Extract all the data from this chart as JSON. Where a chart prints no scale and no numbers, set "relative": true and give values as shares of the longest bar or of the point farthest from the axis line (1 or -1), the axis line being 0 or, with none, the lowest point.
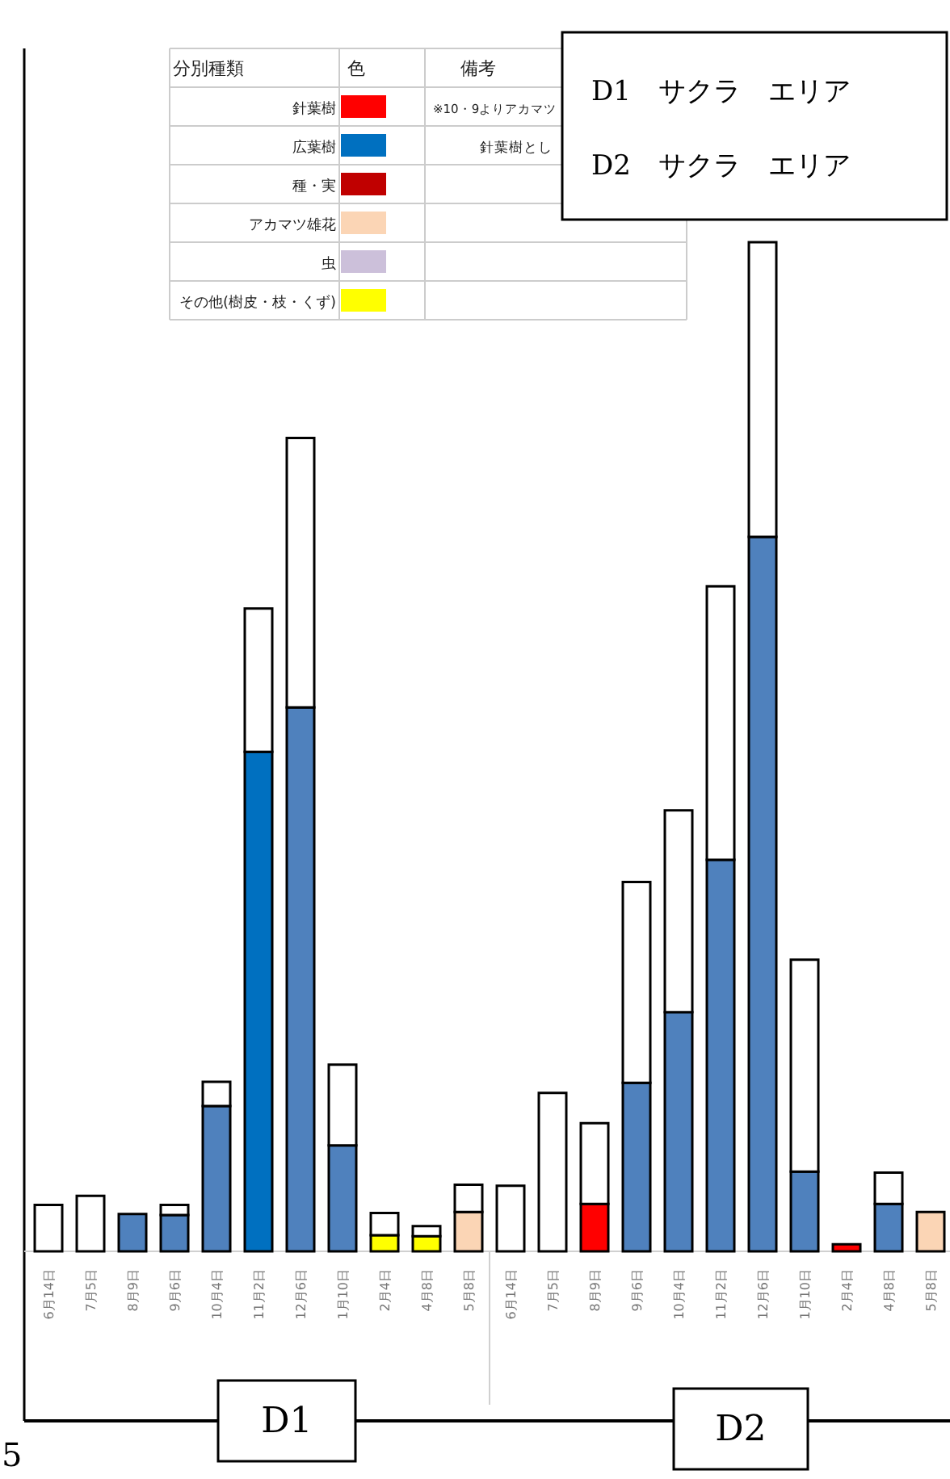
{
  "chart_data": {
    "type": "bar",
    "stacked": true,
    "relative": true,
    "legend": "top left",
    "title": "D1　サクラ　エリア",
    "subtitle": "D2　サクラ　エリア",
    "legend_title": "分別種類",
    "annotations": [
      "色",
      "備考",
      "※10・9よりアカマツ",
      "針葉樹とし",
      "D1",
      "D2",
      "5"
    ],
    "categories": [
      "6月14日",
      "7月5日",
      "8月9日",
      "9月6日",
      "10月4日",
      "11月2日",
      "12月6日",
      "1月10日",
      "2月4日",
      "4月8日",
      "5月8日",
      "6月14日",
      "7月5日",
      "8月9日",
      "9月6日",
      "10月4日",
      "11月2日",
      "12月6日",
      "1月10日",
      "2月4日",
      "4月8日",
      "5月8日"
    ],
    "series": [
      {
        "name": "針葉樹",
        "color": "#ff0000",
        "values": [
          null,
          null,
          null,
          null,
          null,
          null,
          null,
          null,
          null,
          null,
          null,
          null,
          null,
          0.047,
          null,
          null,
          null,
          null,
          null,
          0.007,
          null,
          null
        ]
      },
      {
        "name": "広葉樹",
        "color": "#0070c0",
        "colors": [
          null,
          null,
          "#4f81bd",
          "#4f81bd",
          "#4f81bd",
          "#0070c0",
          "#4f81bd",
          "#4f81bd",
          null,
          null,
          null,
          null,
          null,
          null,
          "#4f81bd",
          "#4f81bd",
          "#4f81bd",
          "#4f81bd",
          "#4f81bd",
          null,
          "#4f81bd",
          null
        ],
        "values": [
          null,
          null,
          0.037,
          0.036,
          0.144,
          0.495,
          0.539,
          0.105,
          null,
          null,
          null,
          null,
          null,
          null,
          0.167,
          0.237,
          0.388,
          0.708,
          0.079,
          null,
          0.047,
          null
        ]
      },
      {
        "name": "種・実",
        "color": "#c00000",
        "values": [
          null,
          null,
          null,
          null,
          null,
          null,
          null,
          null,
          null,
          null,
          null,
          null,
          null,
          null,
          null,
          null,
          null,
          null,
          null,
          null,
          null,
          null
        ]
      },
      {
        "name": "アカマツ雄花",
        "color": "#fbd5b5",
        "values": [
          null,
          null,
          null,
          null,
          null,
          null,
          null,
          null,
          null,
          null,
          0.039,
          null,
          null,
          null,
          null,
          null,
          null,
          null,
          null,
          null,
          null,
          0.039
        ]
      },
      {
        "name": "虫",
        "color": "#ccc0da",
        "values": [
          null,
          null,
          null,
          null,
          null,
          null,
          null,
          null,
          null,
          null,
          null,
          null,
          null,
          null,
          null,
          null,
          null,
          null,
          null,
          null,
          null,
          null
        ]
      },
      {
        "name": "その他(樹皮・枝・くず)",
        "color": "#ffff00",
        "values": [
          null,
          null,
          null,
          null,
          null,
          null,
          null,
          null,
          0.016,
          0.015,
          null,
          null,
          null,
          null,
          null,
          null,
          null,
          null,
          null,
          null,
          null,
          null
        ]
      },
      {
        "color": "#ffffff",
        "values": [
          0.046,
          0.055,
          null,
          0.01,
          0.024,
          0.142,
          0.267,
          0.08,
          0.022,
          0.01,
          0.027,
          0.065,
          0.157,
          0.08,
          0.199,
          0.2,
          0.271,
          0.292,
          0.21,
          null,
          0.031,
          null
        ]
      }
    ]
  }
}
